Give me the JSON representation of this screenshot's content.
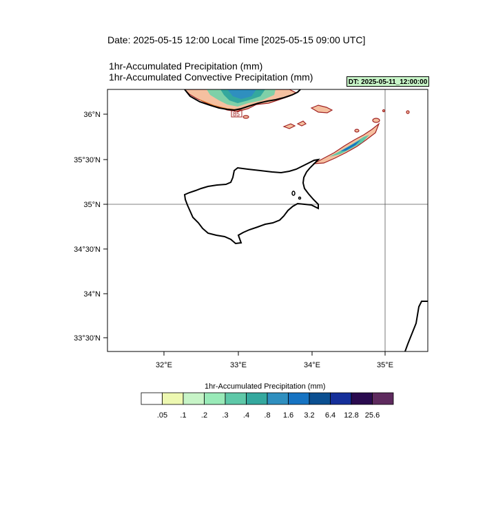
{
  "header": {
    "date_line": "Date: 2025-05-15  12:00 Local Time [2025-05-15  09:00 UTC]",
    "variable_1": "1hr-Accumulated Precipitation   (mm)",
    "variable_2": "1hr-Accumulated Convective Precipitation   (mm)",
    "dt_badge": "DT: 2025-05-11_12:00:00",
    "dt_badge_color": "#c8f5c8"
  },
  "map": {
    "region": "Cyprus",
    "lat_labels": [
      "36°N",
      "35°30'N",
      "35°N",
      "34°30'N",
      "34°N",
      "33°30'N"
    ],
    "lon_labels": [
      "32°E",
      "33°E",
      "34°E",
      "35°E"
    ],
    "gridlines": {
      "lat": "35°N",
      "lon": "35°E"
    },
    "contour_label": "85"
  },
  "legend": {
    "title": "1hr-Accumulated Precipitation  (mm)",
    "levels": [
      ".05",
      ".1",
      ".2",
      ".3",
      ".4",
      ".8",
      "1.6",
      "3.2",
      "6.4",
      "12.8",
      "25.6"
    ],
    "colors": [
      "#ffffff",
      "#edf8b1",
      "#c7f4c7",
      "#99eab8",
      "#5ec8a8",
      "#34a89e",
      "#2f8fbf",
      "#1673c2",
      "#0b4f91",
      "#152f9a",
      "#2a0b4f",
      "#5e2a5e"
    ]
  }
}
